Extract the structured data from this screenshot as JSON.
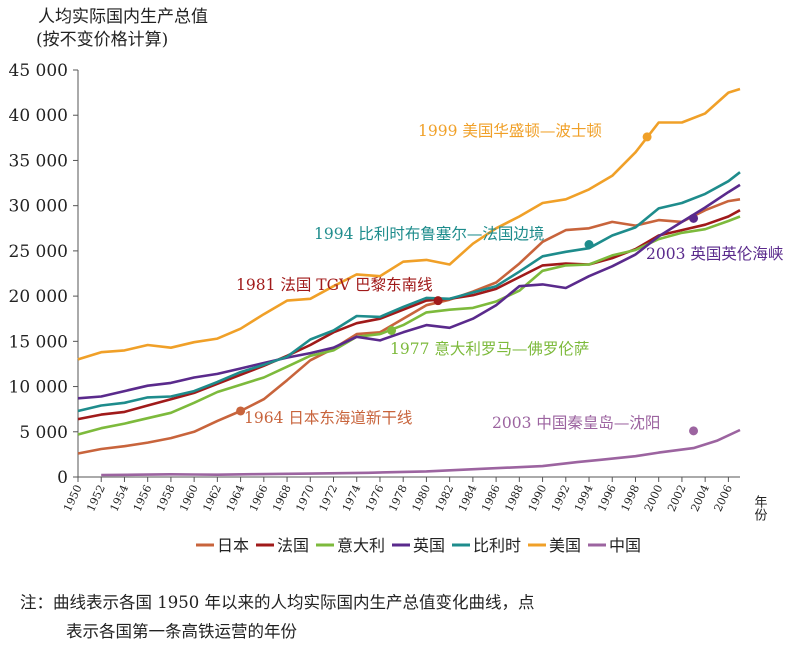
{
  "chart_data": {
    "type": "line",
    "title": "人均实际国内生产总值",
    "subtitle": "(按不变价格计算)",
    "xlabel": "年份",
    "ylabel": "",
    "xlim": [
      1950,
      2007
    ],
    "ylim": [
      0,
      45000
    ],
    "y_ticks": [
      0,
      5000,
      10000,
      15000,
      20000,
      25000,
      30000,
      35000,
      40000,
      45000
    ],
    "y_tick_labels": [
      "0",
      "5 000",
      "10 000",
      "15 000",
      "20 000",
      "25 000",
      "30 000",
      "35 000",
      "40 000",
      "45 000"
    ],
    "x_ticks": [
      1950,
      1952,
      1954,
      1956,
      1958,
      1960,
      1962,
      1964,
      1966,
      1968,
      1970,
      1972,
      1974,
      1976,
      1978,
      1980,
      1982,
      1984,
      1986,
      1988,
      1990,
      1992,
      1994,
      1996,
      1998,
      2000,
      2002,
      2004,
      2006
    ],
    "x_tick_labels": [
      "1950",
      "1952",
      "1954",
      "1956",
      "1958",
      "1960",
      "1962",
      "1964",
      "1966",
      "1968",
      "1970",
      "1972",
      "1974",
      "1976",
      "1978",
      "1980",
      "1982",
      "1984",
      "1986",
      "1988",
      "1990",
      "1992",
      "1994",
      "1996",
      "1998",
      "2000",
      "2002",
      "2004",
      "2006"
    ],
    "legend_position": "bottom",
    "series": [
      {
        "name": "日本",
        "color": "#c8643c",
        "x": [
          1950,
          1952,
          1954,
          1956,
          1958,
          1960,
          1962,
          1964,
          1966,
          1968,
          1970,
          1972,
          1974,
          1976,
          1978,
          1980,
          1982,
          1984,
          1986,
          1988,
          1990,
          1992,
          1994,
          1996,
          1998,
          2000,
          2002,
          2004,
          2006,
          2007
        ],
        "values": [
          2600,
          3100,
          3400,
          3800,
          4300,
          5000,
          6200,
          7300,
          8600,
          10700,
          12900,
          14200,
          15800,
          16000,
          17500,
          19000,
          19600,
          20500,
          21500,
          23600,
          26000,
          27300,
          27500,
          28200,
          27800,
          28400,
          28200,
          29500,
          30500,
          30700
        ]
      },
      {
        "name": "法国",
        "color": "#a01a1a",
        "x": [
          1950,
          1952,
          1954,
          1956,
          1958,
          1960,
          1962,
          1964,
          1966,
          1968,
          1970,
          1972,
          1974,
          1976,
          1978,
          1980,
          1982,
          1984,
          1986,
          1988,
          1990,
          1992,
          1994,
          1996,
          1998,
          2000,
          2002,
          2004,
          2006,
          2007
        ],
        "values": [
          6400,
          6900,
          7200,
          7900,
          8600,
          9300,
          10300,
          11300,
          12300,
          13400,
          14600,
          16000,
          17000,
          17500,
          18500,
          19500,
          19700,
          20100,
          20800,
          22100,
          23400,
          23600,
          23500,
          24200,
          25200,
          26700,
          27300,
          27900,
          28800,
          29500
        ]
      },
      {
        "name": "意大利",
        "color": "#7dba3c",
        "x": [
          1950,
          1952,
          1954,
          1956,
          1958,
          1960,
          1962,
          1964,
          1966,
          1968,
          1970,
          1972,
          1974,
          1976,
          1978,
          1980,
          1982,
          1984,
          1986,
          1988,
          1990,
          1992,
          1994,
          1996,
          1998,
          2000,
          2002,
          2004,
          2006,
          2007
        ],
        "values": [
          4700,
          5400,
          5900,
          6500,
          7100,
          8200,
          9400,
          10200,
          11000,
          12200,
          13400,
          14000,
          15500,
          15800,
          16800,
          18200,
          18500,
          18700,
          19400,
          20600,
          22800,
          23400,
          23500,
          24500,
          25100,
          26300,
          27000,
          27400,
          28300,
          28800
        ]
      },
      {
        "name": "英国",
        "color": "#5a2a8c",
        "x": [
          1950,
          1952,
          1954,
          1956,
          1958,
          1960,
          1962,
          1964,
          1966,
          1968,
          1970,
          1972,
          1974,
          1976,
          1978,
          1980,
          1982,
          1984,
          1986,
          1988,
          1990,
          1992,
          1994,
          1996,
          1998,
          2000,
          2002,
          2004,
          2006,
          2007
        ],
        "values": [
          8700,
          8900,
          9500,
          10100,
          10400,
          11000,
          11400,
          12000,
          12600,
          13200,
          13700,
          14300,
          15500,
          15100,
          16000,
          16800,
          16500,
          17500,
          19000,
          21100,
          21300,
          20900,
          22200,
          23300,
          24600,
          26600,
          28200,
          29800,
          31500,
          32300
        ]
      },
      {
        "name": "比利时",
        "color": "#1e8c8c",
        "x": [
          1950,
          1952,
          1954,
          1956,
          1958,
          1960,
          1962,
          1964,
          1966,
          1968,
          1970,
          1972,
          1974,
          1976,
          1978,
          1980,
          1982,
          1984,
          1986,
          1988,
          1990,
          1992,
          1994,
          1996,
          1998,
          2000,
          2002,
          2004,
          2006,
          2007
        ],
        "values": [
          7300,
          7900,
          8200,
          8800,
          8900,
          9500,
          10500,
          11600,
          12400,
          13300,
          15200,
          16200,
          17800,
          17700,
          18800,
          19800,
          19700,
          20400,
          21100,
          22700,
          24400,
          24900,
          25300,
          26700,
          27600,
          29700,
          30300,
          31300,
          32700,
          33700
        ]
      },
      {
        "name": "美国",
        "color": "#f0a028",
        "x": [
          1950,
          1952,
          1954,
          1956,
          1958,
          1960,
          1962,
          1964,
          1966,
          1968,
          1970,
          1972,
          1974,
          1976,
          1978,
          1980,
          1982,
          1984,
          1986,
          1988,
          1990,
          1992,
          1994,
          1996,
          1998,
          2000,
          2002,
          2004,
          2006,
          2007
        ],
        "values": [
          13000,
          13800,
          14000,
          14600,
          14300,
          14900,
          15300,
          16400,
          18000,
          19500,
          19700,
          21100,
          22400,
          22200,
          23800,
          24000,
          23500,
          25800,
          27500,
          28800,
          30300,
          30700,
          31800,
          33300,
          35900,
          39200,
          39200,
          40200,
          42500,
          42900
        ]
      },
      {
        "name": "中国",
        "color": "#9c64a0",
        "x": [
          1952,
          1955,
          1958,
          1960,
          1962,
          1965,
          1970,
          1975,
          1978,
          1980,
          1985,
          1990,
          1993,
          1995,
          1998,
          2000,
          2003,
          2005,
          2007
        ],
        "values": [
          220,
          250,
          300,
          280,
          250,
          310,
          380,
          460,
          560,
          620,
          920,
          1200,
          1650,
          1900,
          2300,
          2700,
          3200,
          4000,
          5200
        ]
      }
    ],
    "annotations": [
      {
        "text": "1999 美国华盛顿—波士顿",
        "series": "美国",
        "x": 1999,
        "y": 37600
      },
      {
        "text": "1994 比利时布鲁塞尔—法国边境",
        "series": "比利时",
        "x": 1994,
        "y": 25700
      },
      {
        "text": "2003 英国英伦海峡",
        "series": "英国",
        "x": 2003,
        "y": 28600
      },
      {
        "text": "1981 法国 TGV 巴黎东南线",
        "series": "法国",
        "x": 1981,
        "y": 19500
      },
      {
        "text": "1977 意大利罗马—佛罗伦萨",
        "series": "意大利",
        "x": 1977,
        "y": 16200
      },
      {
        "text": "1964 日本东海道新干线",
        "series": "日本",
        "x": 1964,
        "y": 7300
      },
      {
        "text": "2003 中国秦皇岛—沈阳",
        "series": "中国",
        "x": 2003,
        "y": 5100
      }
    ]
  },
  "note": {
    "line1": "注：曲线表示各国 1950 年以来的人均实际国内生产总值变化曲线，点",
    "line2": "表示各国第一条高铁运营的年份"
  }
}
